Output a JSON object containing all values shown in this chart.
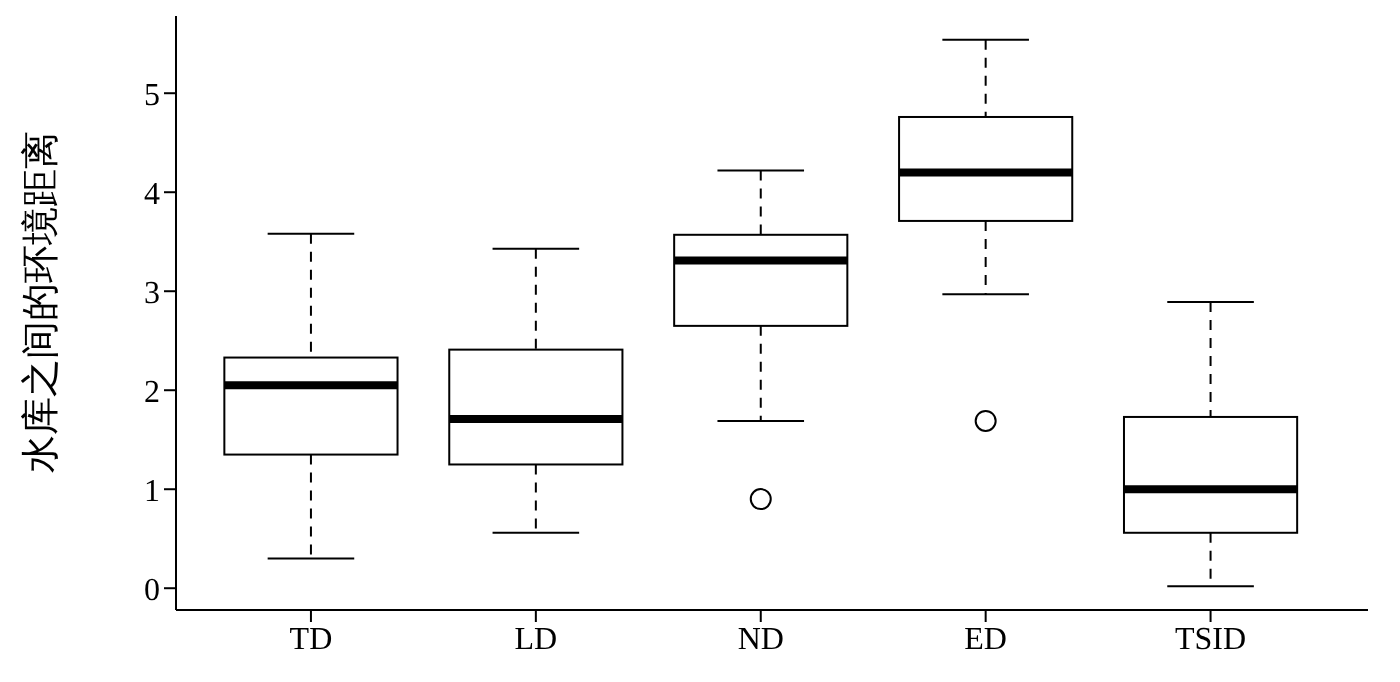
{
  "chart_data": {
    "type": "box",
    "ylabel": "水库之间的环境距离",
    "categories": [
      "TD",
      "LD",
      "ND",
      "ED",
      "TSID"
    ],
    "boxes": [
      {
        "low": 0.3,
        "q1": 1.35,
        "median": 2.05,
        "q3": 2.33,
        "high": 3.58
      },
      {
        "low": 0.56,
        "q1": 1.25,
        "median": 1.71,
        "q3": 2.41,
        "high": 3.43
      },
      {
        "low": 1.69,
        "q1": 2.65,
        "median": 3.31,
        "q3": 3.57,
        "high": 4.22,
        "outliers": [
          0.9
        ]
      },
      {
        "low": 2.97,
        "q1": 3.71,
        "median": 4.2,
        "q3": 4.76,
        "high": 5.54,
        "outliers": [
          1.69
        ]
      },
      {
        "low": 0.02,
        "q1": 0.56,
        "median": 1.0,
        "q3": 1.73,
        "high": 2.89
      }
    ],
    "ylim": [
      -0.22,
      5.78
    ],
    "yticks": [
      0,
      1,
      2,
      3,
      4,
      5
    ],
    "grid": false,
    "legend": false
  }
}
